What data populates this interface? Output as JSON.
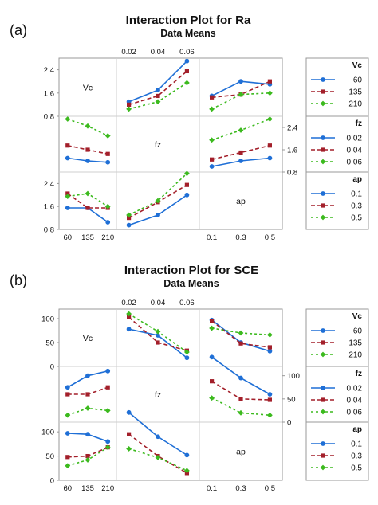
{
  "panels": [
    {
      "label": "(a)",
      "title": "Interaction Plot for Ra",
      "subtitle": "Data Means"
    },
    {
      "label": "(b)",
      "title": "Interaction Plot for SCE",
      "subtitle": "Data Means"
    }
  ],
  "colors": {
    "level1": "#1f6fd6",
    "level2": "#a31f2a",
    "level3": "#3cba1e",
    "grid": "#cfcfcf",
    "frame": "#999999"
  },
  "chart_data": [
    {
      "type": "line",
      "title": "Interaction Plot for Ra",
      "subtitle": "Data Means",
      "factors": [
        {
          "name": "Vc",
          "levels": [
            "60",
            "135",
            "210"
          ]
        },
        {
          "name": "fz",
          "levels": [
            "0.02",
            "0.04",
            "0.06"
          ]
        },
        {
          "name": "ap",
          "levels": [
            "0.1",
            "0.3",
            "0.5"
          ]
        }
      ],
      "ylim": [
        0.8,
        2.8
      ],
      "yticks": [
        "0.8",
        "1.6",
        "2.4"
      ],
      "yticks_value": [
        0.8,
        1.6,
        2.4
      ],
      "legends": [
        {
          "factor": "Vc",
          "entries": [
            "60",
            "135",
            "210"
          ]
        },
        {
          "factor": "fz",
          "entries": [
            "0.02",
            "0.04",
            "0.06"
          ]
        },
        {
          "factor": "ap",
          "entries": [
            "0.1",
            "0.3",
            "0.5"
          ]
        }
      ],
      "cells": [
        {
          "row": 0,
          "col": 1,
          "x_factor": "fz",
          "trace_factor": "Vc",
          "series": [
            {
              "name": "60",
              "values": [
                1.3,
                1.7,
                2.7
              ]
            },
            {
              "name": "135",
              "values": [
                1.2,
                1.5,
                2.35
              ]
            },
            {
              "name": "210",
              "values": [
                1.05,
                1.3,
                1.95
              ]
            }
          ]
        },
        {
          "row": 0,
          "col": 2,
          "x_factor": "ap",
          "trace_factor": "Vc",
          "series": [
            {
              "name": "60",
              "values": [
                1.5,
                2.0,
                1.9
              ]
            },
            {
              "name": "135",
              "values": [
                1.45,
                1.55,
                2.0
              ]
            },
            {
              "name": "210",
              "values": [
                1.05,
                1.55,
                1.6
              ]
            }
          ]
        },
        {
          "row": 1,
          "col": 0,
          "x_factor": "Vc",
          "trace_factor": "fz",
          "series": [
            {
              "name": "0.02",
              "values": [
                1.3,
                1.2,
                1.15
              ]
            },
            {
              "name": "0.04",
              "values": [
                1.75,
                1.6,
                1.45
              ]
            },
            {
              "name": "0.06",
              "values": [
                2.7,
                2.45,
                2.1
              ]
            }
          ]
        },
        {
          "row": 1,
          "col": 2,
          "x_factor": "ap",
          "trace_factor": "fz",
          "series": [
            {
              "name": "0.02",
              "values": [
                1.0,
                1.2,
                1.3
              ]
            },
            {
              "name": "0.04",
              "values": [
                1.25,
                1.5,
                1.75
              ]
            },
            {
              "name": "0.06",
              "values": [
                1.95,
                2.3,
                2.7
              ]
            }
          ]
        },
        {
          "row": 2,
          "col": 0,
          "x_factor": "Vc",
          "trace_factor": "ap",
          "series": [
            {
              "name": "0.1",
              "values": [
                1.55,
                1.55,
                1.05
              ]
            },
            {
              "name": "0.3",
              "values": [
                2.05,
                1.55,
                1.55
              ]
            },
            {
              "name": "0.5",
              "values": [
                1.95,
                2.05,
                1.6
              ]
            }
          ]
        },
        {
          "row": 2,
          "col": 1,
          "x_factor": "fz",
          "trace_factor": "ap",
          "series": [
            {
              "name": "0.1",
              "values": [
                0.95,
                1.3,
                2.0
              ]
            },
            {
              "name": "0.3",
              "values": [
                1.2,
                1.75,
                2.35
              ]
            },
            {
              "name": "0.5",
              "values": [
                1.3,
                1.8,
                2.75
              ]
            }
          ]
        }
      ]
    },
    {
      "type": "line",
      "title": "Interaction Plot for SCE",
      "subtitle": "Data Means",
      "factors": [
        {
          "name": "Vc",
          "levels": [
            "60",
            "135",
            "210"
          ]
        },
        {
          "name": "fz",
          "levels": [
            "0.02",
            "0.04",
            "0.06"
          ]
        },
        {
          "name": "ap",
          "levels": [
            "0.1",
            "0.3",
            "0.5"
          ]
        }
      ],
      "ylim": [
        0,
        120
      ],
      "yticks": [
        "0",
        "50",
        "100"
      ],
      "yticks_value": [
        0,
        50,
        100
      ],
      "legends": [
        {
          "factor": "Vc",
          "entries": [
            "60",
            "135",
            "210"
          ]
        },
        {
          "factor": "fz",
          "entries": [
            "0.02",
            "0.04",
            "0.06"
          ]
        },
        {
          "factor": "ap",
          "entries": [
            "0.1",
            "0.3",
            "0.5"
          ]
        }
      ],
      "cells": [
        {
          "row": 0,
          "col": 1,
          "x_factor": "fz",
          "trace_factor": "Vc",
          "series": [
            {
              "name": "60",
              "values": [
                78,
                65,
                18
              ]
            },
            {
              "name": "135",
              "values": [
                103,
                50,
                33
              ]
            },
            {
              "name": "210",
              "values": [
                110,
                73,
                30
              ]
            }
          ]
        },
        {
          "row": 0,
          "col": 2,
          "x_factor": "ap",
          "trace_factor": "Vc",
          "series": [
            {
              "name": "60",
              "values": [
                97,
                50,
                32
              ]
            },
            {
              "name": "135",
              "values": [
                95,
                48,
                40
              ]
            },
            {
              "name": "210",
              "values": [
                80,
                70,
                66
              ]
            }
          ]
        },
        {
          "row": 1,
          "col": 0,
          "x_factor": "Vc",
          "trace_factor": "fz",
          "series": [
            {
              "name": "0.02",
              "values": [
                75,
                100,
                110
              ]
            },
            {
              "name": "0.04",
              "values": [
                60,
                60,
                75
              ]
            },
            {
              "name": "0.06",
              "values": [
                15,
                30,
                25
              ]
            }
          ]
        },
        {
          "row": 1,
          "col": 2,
          "x_factor": "ap",
          "trace_factor": "fz",
          "series": [
            {
              "name": "0.02",
              "values": [
                140,
                95,
                60
              ]
            },
            {
              "name": "0.04",
              "values": [
                88,
                50,
                48
              ]
            },
            {
              "name": "0.06",
              "values": [
                52,
                20,
                15
              ]
            }
          ]
        },
        {
          "row": 2,
          "col": 0,
          "x_factor": "Vc",
          "trace_factor": "ap",
          "series": [
            {
              "name": "0.1",
              "values": [
                97,
                95,
                80
              ]
            },
            {
              "name": "0.3",
              "values": [
                48,
                50,
                68
              ]
            },
            {
              "name": "0.5",
              "values": [
                30,
                42,
                68
              ]
            }
          ]
        },
        {
          "row": 2,
          "col": 1,
          "x_factor": "fz",
          "trace_factor": "ap",
          "series": [
            {
              "name": "0.1",
              "values": [
                140,
                90,
                52
              ]
            },
            {
              "name": "0.3",
              "values": [
                95,
                50,
                15
              ]
            },
            {
              "name": "0.5",
              "values": [
                65,
                47,
                20
              ]
            }
          ]
        }
      ]
    }
  ]
}
